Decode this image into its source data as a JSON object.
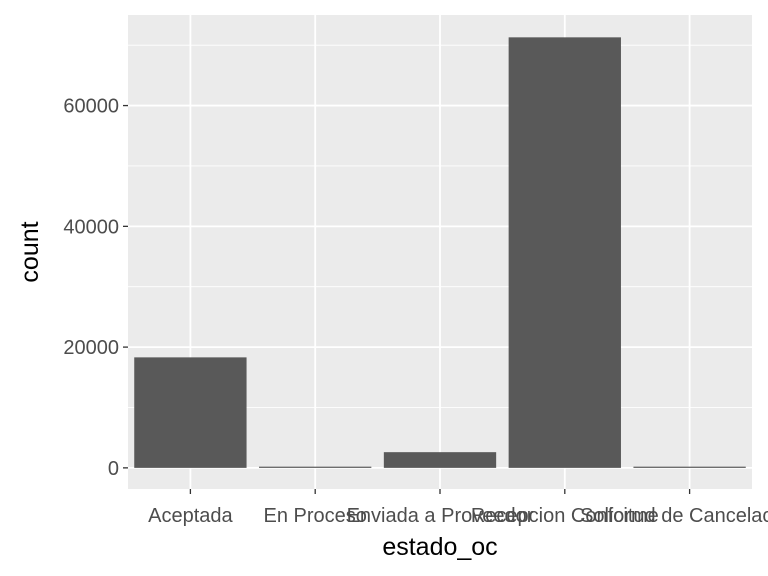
{
  "chart_data": {
    "type": "bar",
    "title": "",
    "xlabel": "estado_oc",
    "ylabel": "count",
    "categories": [
      "Aceptada",
      "En Proceso",
      "Enviada a Proveedor",
      "Recepcion Conforme",
      "Solicitud de Cancelacion"
    ],
    "values": [
      18300,
      150,
      2600,
      71300,
      150
    ],
    "ylim": [
      -3500,
      75000
    ],
    "yticks": [
      0,
      20000,
      40000,
      60000
    ],
    "ytick_labels": [
      "0",
      "20000",
      "40000",
      "60000"
    ],
    "grid": true,
    "legend": "none",
    "colors": {
      "panel_background": "#ebebeb",
      "grid_major": "#ffffff",
      "bar_fill": "#595959",
      "tick_text": "#4d4d4d",
      "tick_mark": "#333333",
      "title_text": "#000000"
    }
  }
}
